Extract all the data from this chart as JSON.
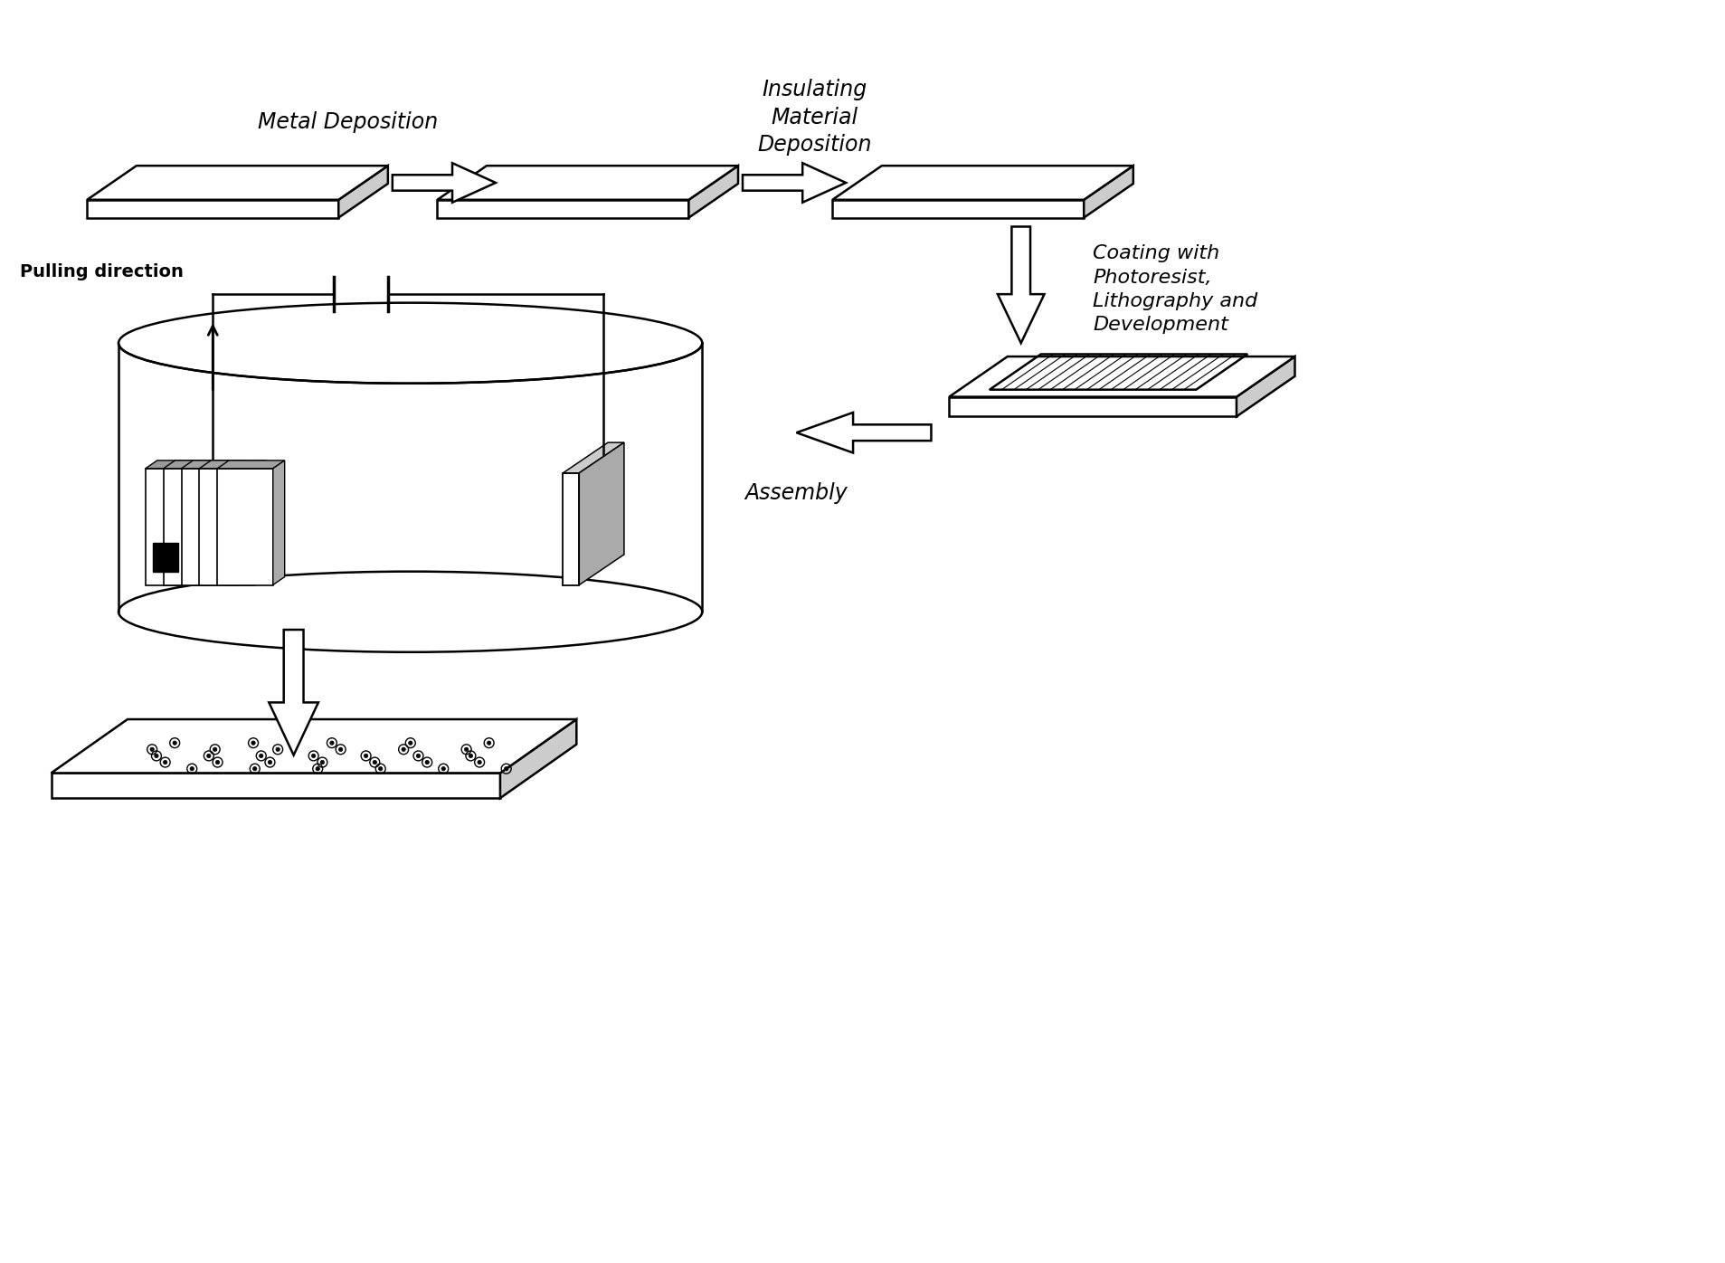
{
  "bg_color": "#ffffff",
  "line_color": "#000000",
  "label_metal_deposition": "Metal Deposition",
  "label_insulating": "Insulating\nMaterial\nDeposition",
  "label_coating": "Coating with\nPhotoresist,\nLithography and\nDevelopment",
  "label_assembly": "Assembly",
  "label_pulling": "Pulling direction",
  "gray_fill": "#cccccc",
  "light_gray": "#e8e8e8",
  "dark_fill": "#333333"
}
